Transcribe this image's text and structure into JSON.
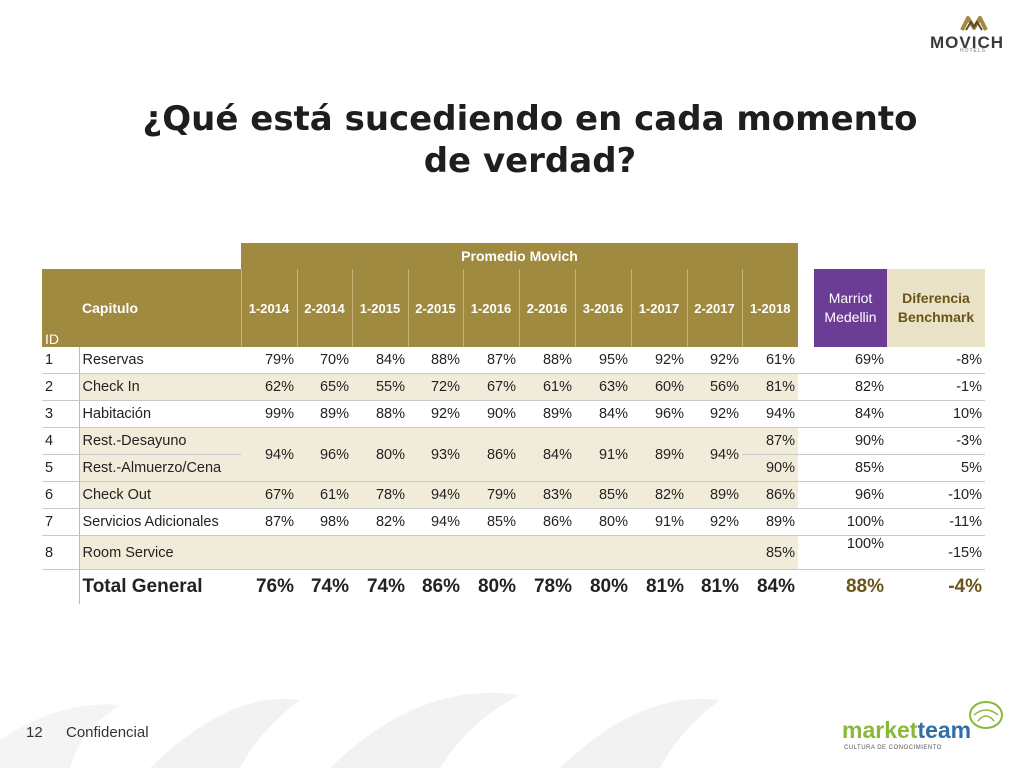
{
  "brand": {
    "name": "MOVICH",
    "sub": "HOTELS"
  },
  "title": "¿Qué está sucediendo en cada momento de verdad?",
  "table": {
    "group_header": "Promedio Movich",
    "id_header": "ID",
    "chapter_header": "Capitulo",
    "periods": [
      "1-2014",
      "2-2014",
      "1-2015",
      "2-2015",
      "1-2016",
      "2-2016",
      "3-2016",
      "1-2017",
      "2-2017",
      "1-2018"
    ],
    "marriott_header": "Marriot Medellin",
    "bench_header": "Diferencia Benchmark",
    "rows": [
      {
        "id": "1",
        "label": "Reservas",
        "values": [
          "79%",
          "70%",
          "84%",
          "88%",
          "87%",
          "88%",
          "95%",
          "92%",
          "92%",
          "61%"
        ],
        "marriott": "69%",
        "diff": "-8%"
      },
      {
        "id": "2",
        "label": "Check In",
        "values": [
          "62%",
          "65%",
          "55%",
          "72%",
          "67%",
          "61%",
          "63%",
          "60%",
          "56%",
          "81%"
        ],
        "marriott": "82%",
        "diff": "-1%"
      },
      {
        "id": "3",
        "label": "Habitación",
        "values": [
          "99%",
          "89%",
          "88%",
          "92%",
          "90%",
          "89%",
          "84%",
          "96%",
          "92%",
          "94%"
        ],
        "marriott": "84%",
        "diff": "10%"
      },
      {
        "id": "4",
        "label": "Rest.-Desayuno",
        "values": [
          "94%",
          "96%",
          "80%",
          "93%",
          "86%",
          "84%",
          "91%",
          "89%",
          "94%",
          "87%"
        ],
        "marriott": "90%",
        "diff": "-3%"
      },
      {
        "id": "5",
        "label": "Rest.-Almuerzo/Cena",
        "values": [
          "",
          "",
          "",
          "",
          "",
          "",
          "",
          "",
          "",
          "90%"
        ],
        "marriott": "85%",
        "diff": "5%"
      },
      {
        "id": "6",
        "label": "Check Out",
        "values": [
          "67%",
          "61%",
          "78%",
          "94%",
          "79%",
          "83%",
          "85%",
          "82%",
          "89%",
          "86%"
        ],
        "marriott": "96%",
        "diff": "-10%"
      },
      {
        "id": "7",
        "label": "Servicios Adicionales",
        "values": [
          "87%",
          "98%",
          "82%",
          "94%",
          "85%",
          "86%",
          "80%",
          "91%",
          "92%",
          "89%"
        ],
        "marriott": "100%",
        "diff": "-11%"
      },
      {
        "id": "8",
        "label": "Room Service",
        "values": [
          "",
          "",
          "",
          "",
          "",
          "",
          "",
          "",
          "",
          "85%"
        ],
        "marriott": "100%",
        "diff": "-15%"
      }
    ],
    "total": {
      "label": "Total General",
      "values": [
        "76%",
        "74%",
        "74%",
        "86%",
        "80%",
        "78%",
        "80%",
        "81%",
        "81%",
        "84%"
      ],
      "marriott": "88%",
      "diff": "-4%"
    }
  },
  "footer": {
    "page_number": "12",
    "label": "Confidencial"
  },
  "partner_logo": {
    "part1": "market",
    "part2": "team",
    "tagline": "CULTURA DE CONOCIMIENTO"
  },
  "colors": {
    "gold": "#a08a3f",
    "purple": "#6b3c93",
    "bench_bg": "#e9e2c6",
    "band": "#f1ecd9"
  }
}
